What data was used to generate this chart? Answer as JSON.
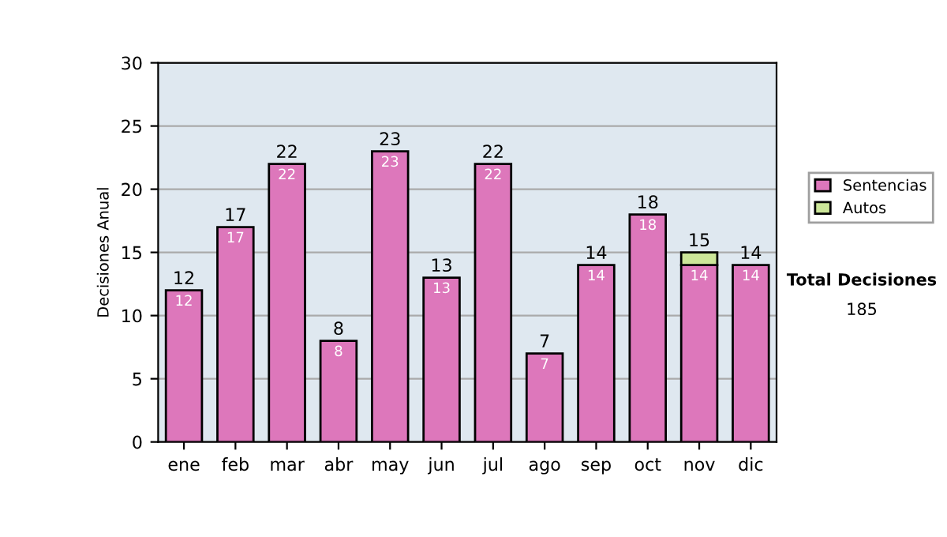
{
  "chart_data": {
    "type": "bar",
    "stacked": true,
    "ylabel": "Decisiones Anual",
    "categories": [
      "ene",
      "feb",
      "mar",
      "abr",
      "may",
      "jun",
      "jul",
      "ago",
      "sep",
      "oct",
      "nov",
      "dic"
    ],
    "series": [
      {
        "name": "Sentencias",
        "color": "#dd77bb",
        "values": [
          12,
          17,
          22,
          8,
          23,
          13,
          22,
          7,
          14,
          18,
          14,
          14
        ],
        "value_labels": [
          "12",
          "17",
          "22",
          "8",
          "23",
          "13",
          "22",
          "7",
          "14",
          "18",
          "14",
          "14"
        ]
      },
      {
        "name": "Autos",
        "color": "#cce699",
        "values": [
          0,
          0,
          0,
          0,
          0,
          0,
          0,
          0,
          0,
          0,
          1,
          0
        ],
        "value_labels": [
          null,
          null,
          null,
          null,
          null,
          null,
          null,
          null,
          null,
          null,
          null,
          null
        ]
      }
    ],
    "totals": [
      "12",
      "17",
      "22",
      "8",
      "23",
      "13",
      "22",
      "7",
      "14",
      "18",
      "15",
      "14"
    ],
    "ylim": [
      0,
      30
    ],
    "yticks": [
      0,
      5,
      10,
      15,
      20,
      25,
      30
    ],
    "grid": "y",
    "legend": "right",
    "annotations": [
      "Total Decisiones",
      "185"
    ]
  }
}
